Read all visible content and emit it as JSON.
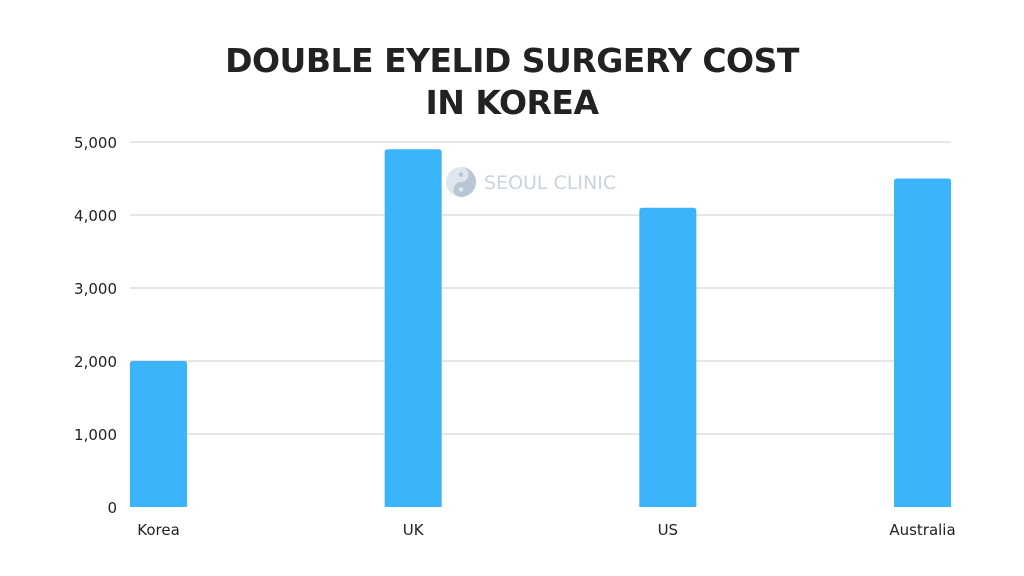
{
  "chart_data": {
    "type": "bar",
    "title_lines": [
      "DOUBLE EYELID SURGERY COST",
      "IN KOREA"
    ],
    "categories": [
      "Korea",
      "UK",
      "US",
      "Australia"
    ],
    "values": [
      2000,
      4900,
      4100,
      4500
    ],
    "ylim": [
      0,
      5000
    ],
    "yticks": [
      0,
      1000,
      2000,
      3000,
      4000,
      5000
    ],
    "ytick_labels": [
      "0",
      "1,000",
      "2,000",
      "3,000",
      "4,000",
      "5,000"
    ],
    "xlabel": "",
    "ylabel": "",
    "grid": true,
    "legend": "none",
    "bar_color": "#3bb4fc",
    "grid_color": "#cccccc"
  },
  "watermark": {
    "text": "SEOUL CLINIC",
    "icon": "yin-yang-icon",
    "color": "#c9d3dc"
  }
}
